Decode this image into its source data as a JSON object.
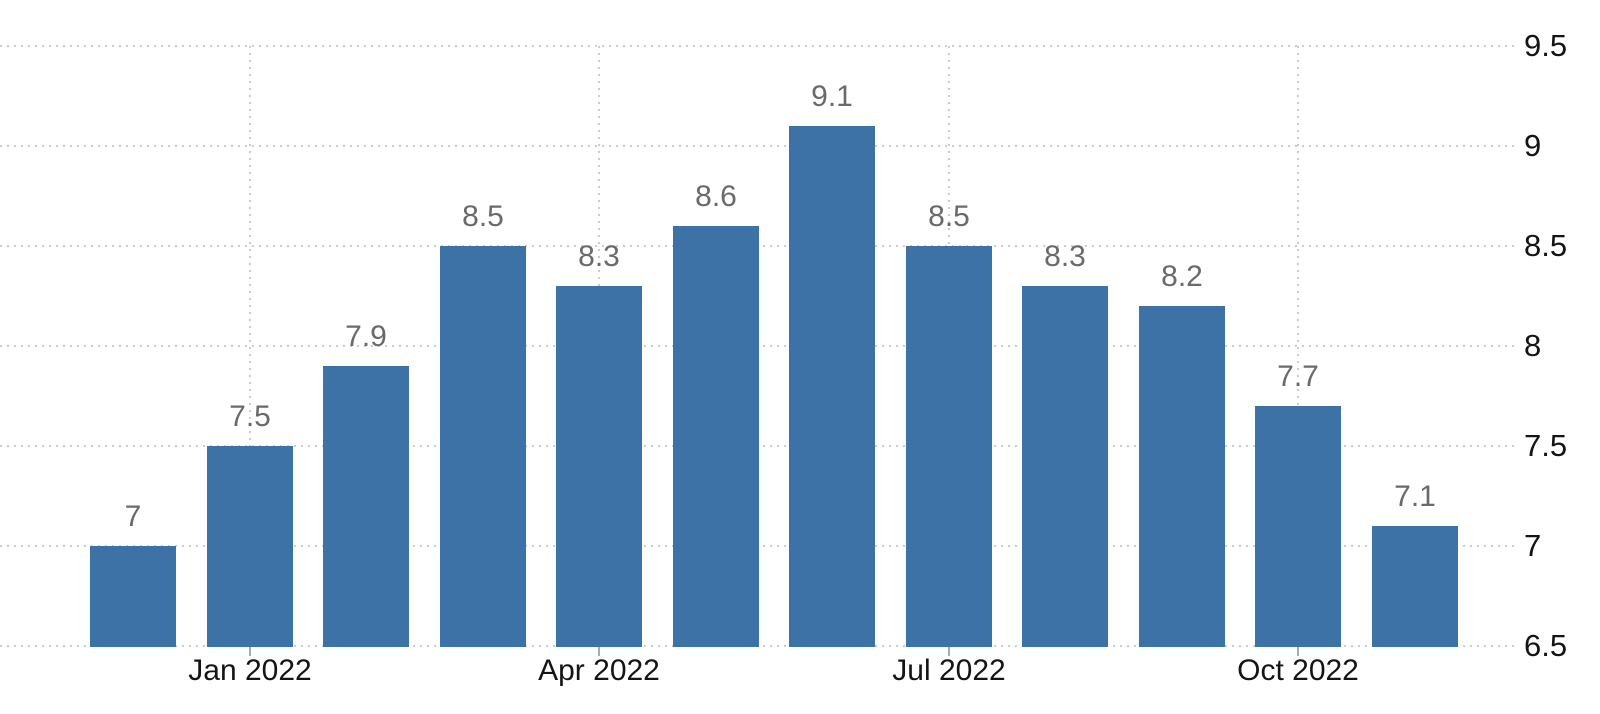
{
  "colors": {
    "bar": "#3d72a6",
    "grid": "#cccccc",
    "value_label": "#6a6a6a",
    "axis_label": "#141414",
    "tick": "#aaaaaa",
    "background": "#ffffff"
  },
  "chart_data": {
    "type": "bar",
    "title": "",
    "xlabel": "",
    "ylabel": "",
    "values": [
      7,
      7.5,
      7.9,
      8.5,
      8.3,
      8.6,
      9.1,
      8.5,
      8.3,
      8.2,
      7.7,
      7.1
    ],
    "bar_labels": [
      "7",
      "7.5",
      "7.9",
      "8.5",
      "8.3",
      "8.6",
      "9.1",
      "8.5",
      "8.3",
      "8.2",
      "7.7",
      "7.1"
    ],
    "x_tick_labels": [
      {
        "bar_index": 1,
        "label": "Jan 2022"
      },
      {
        "bar_index": 4,
        "label": "Apr 2022"
      },
      {
        "bar_index": 7,
        "label": "Jul 2022"
      },
      {
        "bar_index": 10,
        "label": "Oct 2022"
      }
    ],
    "y_tick_labels": [
      "9.5",
      "9",
      "8.5",
      "8",
      "7.5",
      "7",
      "6.5"
    ],
    "y_ticks": [
      9.5,
      9,
      8.5,
      8,
      7.5,
      7,
      6.5
    ],
    "ylim": [
      6.5,
      9.5
    ],
    "y_axis_side": "right",
    "grid": "dotted",
    "legend": "none"
  }
}
